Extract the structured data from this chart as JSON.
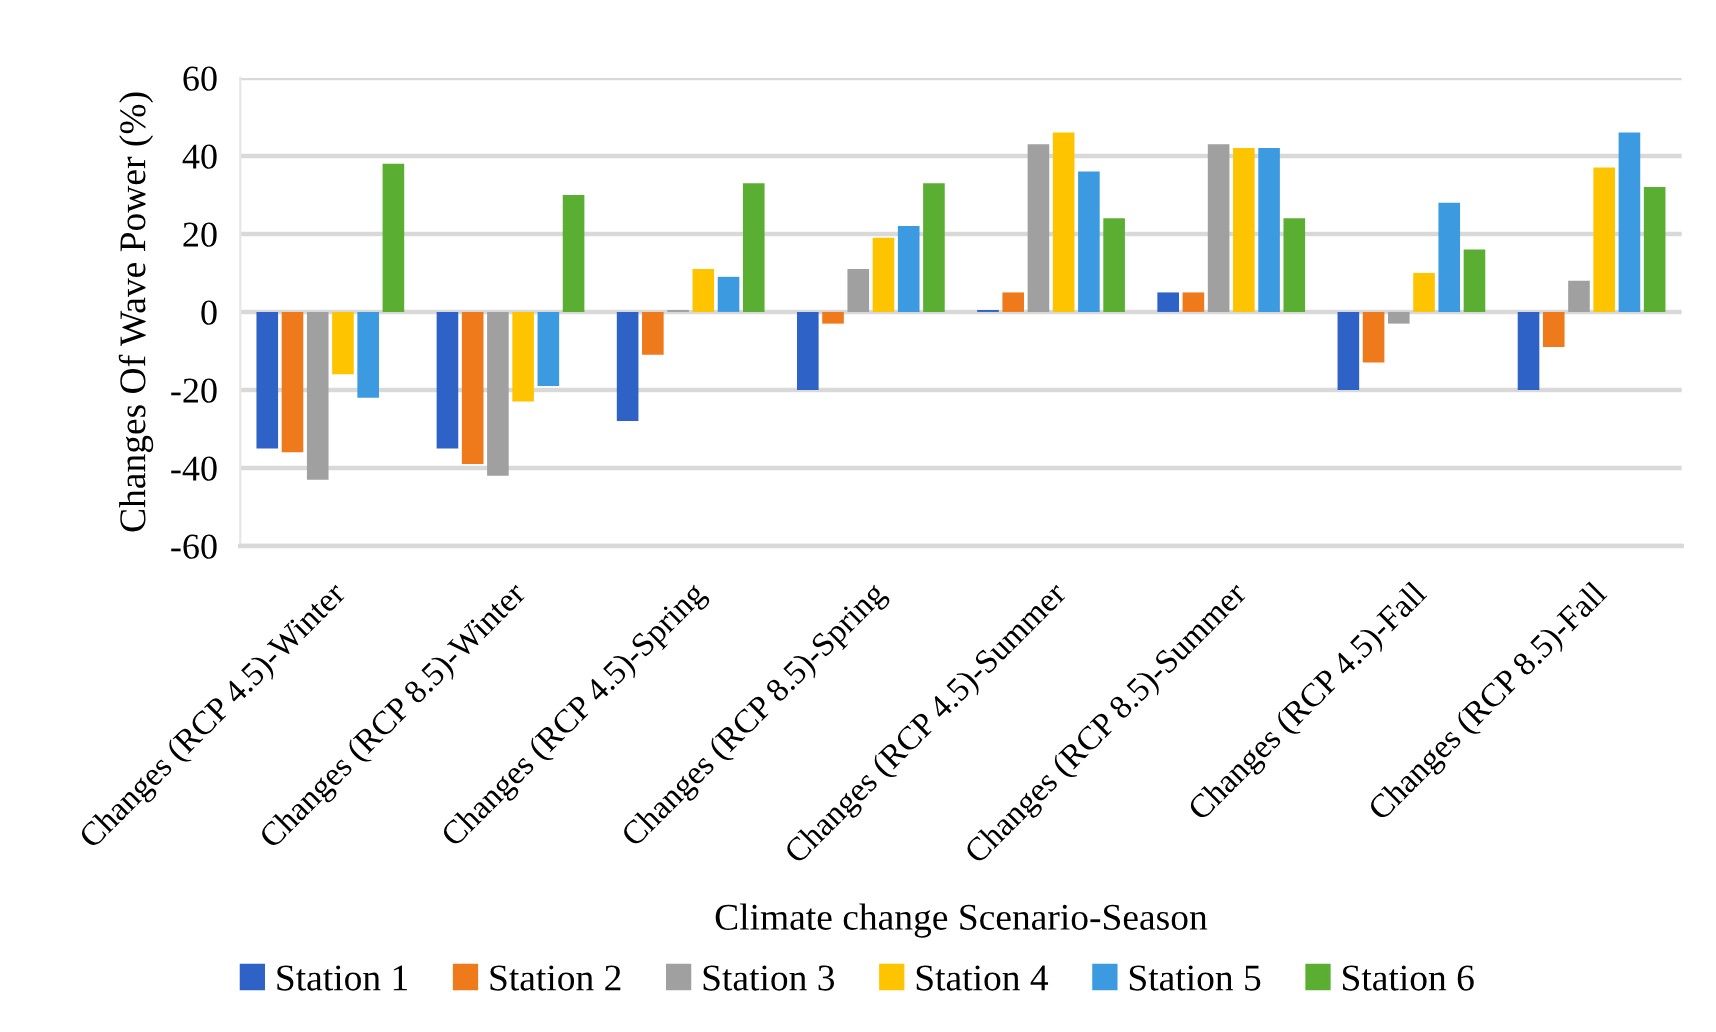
{
  "chart_data": {
    "type": "bar",
    "xlabel": "Climate change Scenario-Season",
    "ylabel": "Changes Of Wave Power (%)",
    "categories": [
      "Changes (RCP 4.5)-Winter",
      "Changes (RCP 8.5)-Winter",
      "Changes (RCP 4.5)-Spring",
      "Changes (RCP 8.5)-Spring",
      "Changes (RCP 4.5)-Summer",
      "Changes (RCP 8.5)-Summer",
      "Changes (RCP 4.5)-Fall",
      "Changes (RCP 8.5)-Fall"
    ],
    "series": [
      {
        "name": "Station 1",
        "color": "#2f62c6",
        "values": [
          -35,
          -35,
          -28,
          -20,
          0.5,
          5,
          -20,
          -20
        ]
      },
      {
        "name": "Station 2",
        "color": "#ef7a1c",
        "values": [
          -36,
          -39,
          -11,
          -3,
          5,
          5,
          -13,
          -9
        ]
      },
      {
        "name": "Station 3",
        "color": "#a0a0a0",
        "values": [
          -43,
          -42,
          0.5,
          11,
          43,
          43,
          -3,
          8
        ]
      },
      {
        "name": "Station 4",
        "color": "#ffc400",
        "values": [
          -16,
          -23,
          11,
          19,
          46,
          42,
          10,
          37
        ]
      },
      {
        "name": "Station 5",
        "color": "#3c9be0",
        "values": [
          -22,
          -19,
          9,
          22,
          36,
          42,
          28,
          46
        ]
      },
      {
        "name": "Station 6",
        "color": "#5aae32",
        "values": [
          38,
          30,
          33,
          33,
          24,
          24,
          16,
          32
        ]
      }
    ],
    "ylim": [
      -60,
      60
    ],
    "yticks": [
      -60,
      -40,
      -20,
      0,
      20,
      40,
      60
    ],
    "grid": "y",
    "legend": "bottom"
  }
}
